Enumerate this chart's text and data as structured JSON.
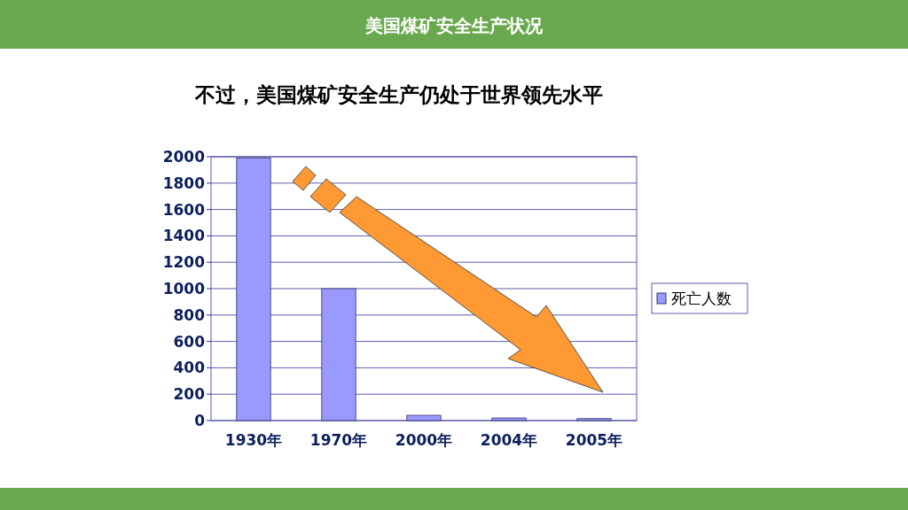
{
  "chart_data": {
    "type": "bar",
    "title": "美国煤矿安全生产状况",
    "subtitle": "不过，美国煤矿安全生产仍处于世界领先水平",
    "categories": [
      "1930年",
      "1970年",
      "2000年",
      "2004年",
      "2005年"
    ],
    "series": [
      {
        "name": "死亡人数",
        "color": "#9999ff",
        "values": [
          1990,
          1000,
          40,
          20,
          15
        ]
      }
    ],
    "ylim": [
      0,
      2000
    ],
    "yticks": [
      0,
      200,
      400,
      600,
      800,
      1000,
      1200,
      1400,
      1600,
      1800,
      2000
    ],
    "grid": "y",
    "legend": "right"
  }
}
